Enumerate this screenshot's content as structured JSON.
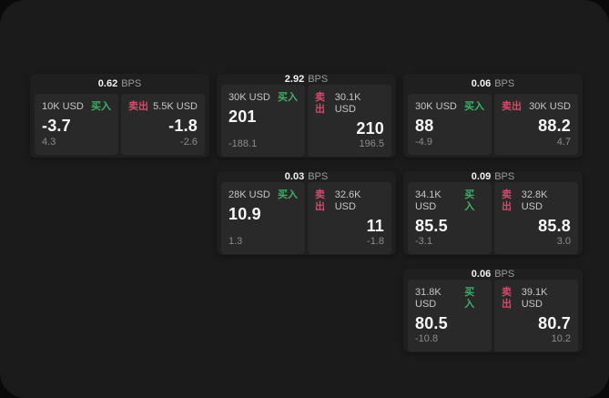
{
  "labels": {
    "bps_unit": "BPS",
    "buy": "买入",
    "sell": "卖出"
  },
  "colors": {
    "surface": "#1b1b1b",
    "card": "#1f1f1f",
    "panel": "#292929",
    "buy_green": "#3cb166",
    "sell_pink": "#d34a6a"
  },
  "cards": [
    {
      "row": 1,
      "col": 1,
      "bps": "0.62",
      "buy": {
        "amount": "10K USD",
        "value": "-3.7",
        "sub": "4.3"
      },
      "sell": {
        "amount": "5.5K USD",
        "value": "-1.8",
        "sub": "-2.6"
      }
    },
    {
      "row": 1,
      "col": 2,
      "bps": "2.92",
      "buy": {
        "amount": "30K USD",
        "value": "201",
        "sub": "-188.1"
      },
      "sell": {
        "amount": "30.1K USD",
        "value": "210",
        "sub": "196.5"
      }
    },
    {
      "row": 1,
      "col": 3,
      "bps": "0.06",
      "buy": {
        "amount": "30K USD",
        "value": "88",
        "sub": "-4.9"
      },
      "sell": {
        "amount": "30K USD",
        "value": "88.2",
        "sub": "4.7"
      }
    },
    {
      "row": 2,
      "col": 2,
      "bps": "0.03",
      "buy": {
        "amount": "28K USD",
        "value": "10.9",
        "sub": "1.3"
      },
      "sell": {
        "amount": "32.6K USD",
        "value": "11",
        "sub": "-1.8"
      }
    },
    {
      "row": 2,
      "col": 3,
      "bps": "0.09",
      "buy": {
        "amount": "34.1K USD",
        "value": "85.5",
        "sub": "-3.1"
      },
      "sell": {
        "amount": "32.8K USD",
        "value": "85.8",
        "sub": "3.0"
      }
    },
    {
      "row": 3,
      "col": 3,
      "bps": "0.06",
      "buy": {
        "amount": "31.8K USD",
        "value": "80.5",
        "sub": "-10.8"
      },
      "sell": {
        "amount": "39.1K USD",
        "value": "80.7",
        "sub": "10.2"
      }
    }
  ]
}
